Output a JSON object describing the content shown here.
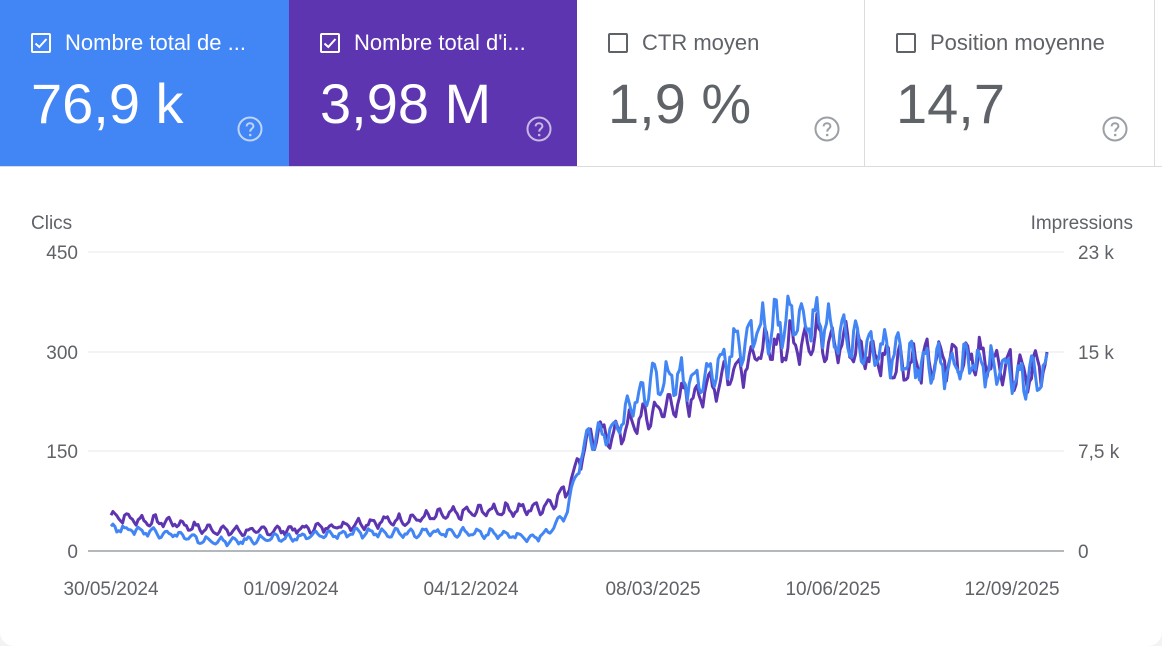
{
  "metrics": [
    {
      "label": "Nombre total de ...",
      "value": "76,9 k",
      "checked": true,
      "color": "#4285f4"
    },
    {
      "label": "Nombre total d'i...",
      "value": "3,98 M",
      "checked": true,
      "color": "#5e35b1"
    },
    {
      "label": "CTR moyen",
      "value": "1,9 %",
      "checked": false,
      "color": "#ffffff"
    },
    {
      "label": "Position moyenne",
      "value": "14,7",
      "checked": false,
      "color": "#ffffff"
    }
  ],
  "chart_data": {
    "type": "line",
    "x_start": "30/05/2024",
    "x_end": "26/09/2025",
    "x_tick_labels": [
      "30/05/2024",
      "01/09/2024",
      "04/12/2024",
      "08/03/2025",
      "10/06/2025",
      "12/09/2025"
    ],
    "ylabel_left": "Clics",
    "ylabel_right": "Impressions",
    "y_left_ticks": [
      "0",
      "150",
      "300",
      "450"
    ],
    "y_right_ticks": [
      "0",
      "7,5 k",
      "15 k",
      "23 k"
    ],
    "ylim_left": [
      0,
      450
    ],
    "ylim_right": [
      0,
      22500
    ],
    "grid": true,
    "series": [
      {
        "axis": "right",
        "color": "#5e35b1",
        "points": [
          [
            "30/05/2024",
            2700
          ],
          [
            "15/06/2024",
            2300
          ],
          [
            "01/07/2024",
            2150
          ],
          [
            "15/07/2024",
            1700
          ],
          [
            "01/08/2024",
            1500
          ],
          [
            "15/08/2024",
            1500
          ],
          [
            "01/09/2024",
            1600
          ],
          [
            "15/09/2024",
            1750
          ],
          [
            "01/10/2024",
            2000
          ],
          [
            "15/10/2024",
            2200
          ],
          [
            "01/11/2024",
            2400
          ],
          [
            "15/11/2024",
            2650
          ],
          [
            "01/12/2024",
            2900
          ],
          [
            "15/12/2024",
            3100
          ],
          [
            "01/01/2025",
            3150
          ],
          [
            "10/01/2025",
            3400
          ],
          [
            "20/01/2025",
            4500
          ],
          [
            "26/01/2025",
            6500
          ],
          [
            "01/02/2025",
            8600
          ],
          [
            "15/02/2025",
            8800
          ],
          [
            "01/03/2025",
            10000
          ],
          [
            "15/03/2025",
            11000
          ],
          [
            "01/04/2025",
            12000
          ],
          [
            "15/04/2025",
            13500
          ],
          [
            "01/05/2025",
            15000
          ],
          [
            "15/05/2025",
            15600
          ],
          [
            "01/06/2025",
            16200
          ],
          [
            "15/06/2025",
            15400
          ],
          [
            "01/07/2025",
            14600
          ],
          [
            "15/07/2025",
            14000
          ],
          [
            "01/08/2025",
            14300
          ],
          [
            "15/08/2025",
            14700
          ],
          [
            "01/09/2025",
            14200
          ],
          [
            "15/09/2025",
            13600
          ],
          [
            "26/09/2025",
            13800
          ]
        ]
      },
      {
        "axis": "left",
        "color": "#4285f4",
        "points": [
          [
            "30/05/2024",
            36
          ],
          [
            "15/06/2024",
            30
          ],
          [
            "01/07/2024",
            26
          ],
          [
            "15/07/2024",
            16
          ],
          [
            "01/08/2024",
            14
          ],
          [
            "15/08/2024",
            18
          ],
          [
            "01/09/2024",
            20
          ],
          [
            "15/09/2024",
            24
          ],
          [
            "01/10/2024",
            26
          ],
          [
            "15/10/2024",
            28
          ],
          [
            "01/11/2024",
            28
          ],
          [
            "15/11/2024",
            28
          ],
          [
            "01/12/2024",
            28
          ],
          [
            "15/12/2024",
            26
          ],
          [
            "01/01/2025",
            20
          ],
          [
            "10/01/2025",
            25
          ],
          [
            "20/01/2025",
            55
          ],
          [
            "26/01/2025",
            120
          ],
          [
            "01/02/2025",
            170
          ],
          [
            "15/02/2025",
            180
          ],
          [
            "01/03/2025",
            245
          ],
          [
            "15/03/2025",
            265
          ],
          [
            "01/04/2025",
            255
          ],
          [
            "15/04/2025",
            300
          ],
          [
            "01/05/2025",
            335
          ],
          [
            "15/05/2025",
            350
          ],
          [
            "01/06/2025",
            345
          ],
          [
            "15/06/2025",
            315
          ],
          [
            "01/07/2025",
            300
          ],
          [
            "15/07/2025",
            290
          ],
          [
            "01/08/2025",
            280
          ],
          [
            "15/08/2025",
            285
          ],
          [
            "01/09/2025",
            275
          ],
          [
            "15/09/2025",
            260
          ],
          [
            "26/09/2025",
            270
          ]
        ]
      }
    ]
  }
}
